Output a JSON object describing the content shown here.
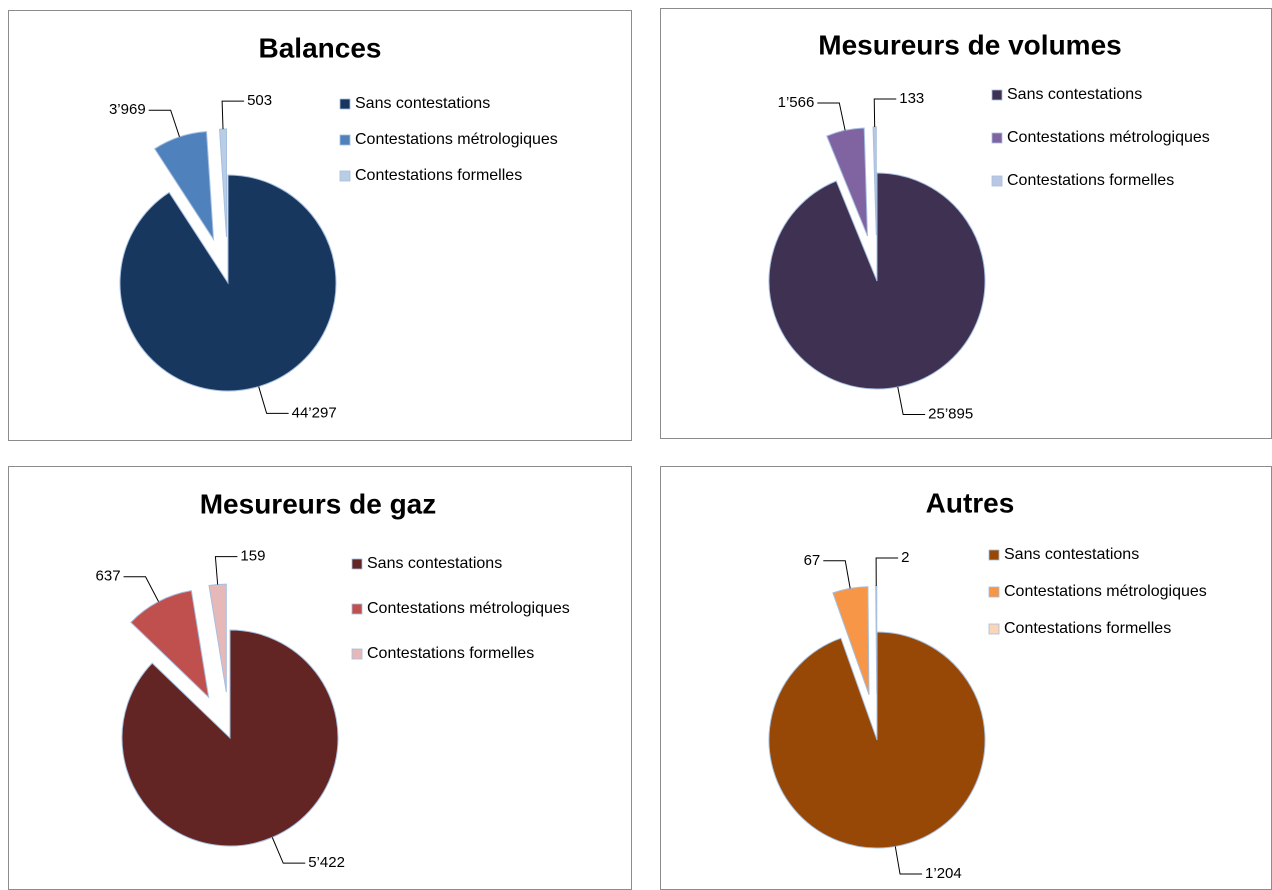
{
  "chart_data": [
    {
      "type": "pie",
      "title": "Balances",
      "categories": [
        "Sans contestations",
        "Contestations métrologiques",
        "Contestations formelles"
      ],
      "values": [
        44297,
        3969,
        503
      ],
      "value_labels": [
        "44’297",
        "3’969",
        "503"
      ],
      "colors": [
        "#17375e",
        "#4f81bd",
        "#b9cde5"
      ]
    },
    {
      "type": "pie",
      "title": "Mesureurs de volumes",
      "categories": [
        "Sans contestations",
        "Contestations métrologiques",
        "Contestations formelles"
      ],
      "values": [
        25895,
        1566,
        133
      ],
      "value_labels": [
        "25’895",
        "1’566",
        "133"
      ],
      "colors": [
        "#3f3151",
        "#8064a2",
        "#b9c7e4"
      ]
    },
    {
      "type": "pie",
      "title": "Mesureurs de gaz",
      "categories": [
        "Sans contestations",
        "Contestations métrologiques",
        "Contestations formelles"
      ],
      "values": [
        5422,
        637,
        159
      ],
      "value_labels": [
        "5’422",
        "637",
        "159"
      ],
      "colors": [
        "#632523",
        "#c0504d",
        "#e6b9b8"
      ]
    },
    {
      "type": "pie",
      "title": "Autres",
      "categories": [
        "Sans contestations",
        "Contestations métrologiques",
        "Contestations formelles"
      ],
      "values": [
        1204,
        67,
        2
      ],
      "value_labels": [
        "1’204",
        "67",
        "2"
      ],
      "colors": [
        "#974806",
        "#f79646",
        "#fbd5b5"
      ]
    }
  ]
}
